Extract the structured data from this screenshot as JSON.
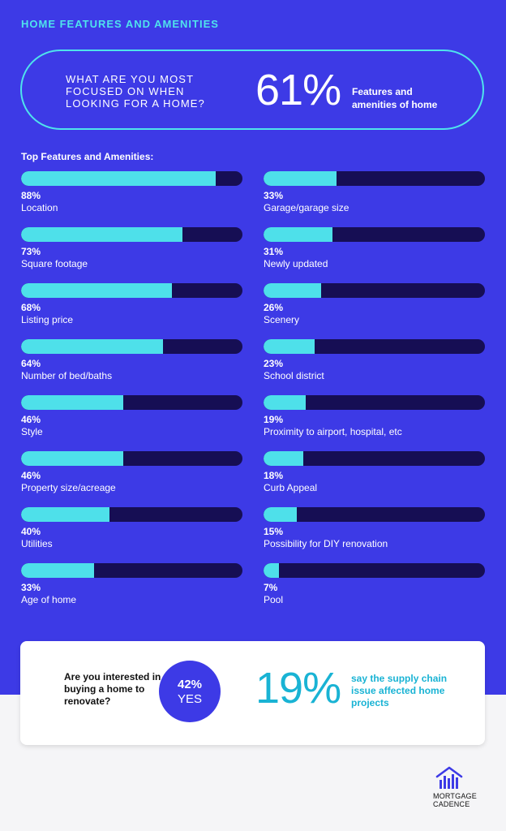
{
  "section_title": "HOME FEATURES AND AMENITIES",
  "highlight": {
    "question": "WHAT ARE YOU MOST FOCUSED ON WHEN LOOKING FOR A HOME?",
    "value": "61%",
    "description": "Features and amenities of home"
  },
  "list_title": "Top Features and Amenities:",
  "features_left": [
    {
      "percent": 88,
      "pct_label": "88%",
      "label": "Location"
    },
    {
      "percent": 73,
      "pct_label": "73%",
      "label": "Square footage"
    },
    {
      "percent": 68,
      "pct_label": "68%",
      "label": "Listing price"
    },
    {
      "percent": 64,
      "pct_label": "64%",
      "label": "Number of bed/baths"
    },
    {
      "percent": 46,
      "pct_label": "46%",
      "label": "Style"
    },
    {
      "percent": 46,
      "pct_label": "46%",
      "label": "Property size/acreage"
    },
    {
      "percent": 40,
      "pct_label": "40%",
      "label": "Utilities"
    },
    {
      "percent": 33,
      "pct_label": "33%",
      "label": "Age of home"
    }
  ],
  "features_right": [
    {
      "percent": 33,
      "pct_label": "33%",
      "label": "Garage/garage size"
    },
    {
      "percent": 31,
      "pct_label": "31%",
      "label": "Newly updated"
    },
    {
      "percent": 26,
      "pct_label": "26%",
      "label": "Scenery"
    },
    {
      "percent": 23,
      "pct_label": "23%",
      "label": "School district"
    },
    {
      "percent": 19,
      "pct_label": "19%",
      "label": "Proximity to airport, hospital, etc"
    },
    {
      "percent": 18,
      "pct_label": "18%",
      "label": "Curb Appeal"
    },
    {
      "percent": 15,
      "pct_label": "15%",
      "label": "Possibility for DIY renovation"
    },
    {
      "percent": 7,
      "pct_label": "7%",
      "label": "Pool"
    }
  ],
  "renovate": {
    "question": "Are you interested in buying a home to renovate?",
    "yes_percent": "42%",
    "yes_label": "YES"
  },
  "supply": {
    "value": "19%",
    "description": "say the supply chain issue affected home projects"
  },
  "logo": {
    "line1": "MORTGAGE",
    "line2": "CADENCE",
    "icon": "house-bars-icon"
  },
  "colors": {
    "background": "#3d3ae6",
    "accent": "#4ee0ea",
    "track": "#160e54",
    "stat_blue": "#19b3d4"
  }
}
